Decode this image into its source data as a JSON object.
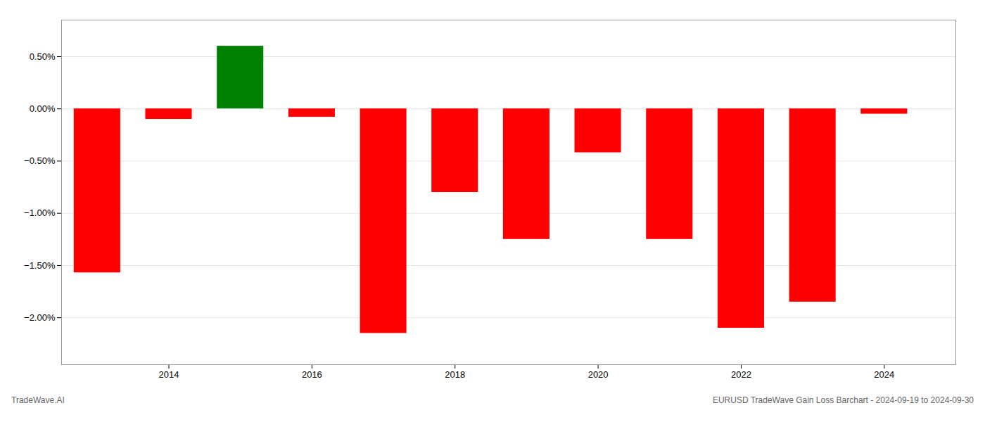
{
  "chart_data": {
    "type": "bar",
    "x": [
      2013,
      2014,
      2015,
      2016,
      2017,
      2018,
      2019,
      2020,
      2021,
      2022,
      2023,
      2024
    ],
    "values": [
      -1.57,
      -0.1,
      0.6,
      -0.08,
      -2.15,
      -0.8,
      -1.25,
      -0.42,
      -1.25,
      -2.1,
      -1.85,
      -0.05
    ],
    "colors": [
      "#FF0000",
      "#FF0000",
      "#008000",
      "#FF0000",
      "#FF0000",
      "#FF0000",
      "#FF0000",
      "#FF0000",
      "#FF0000",
      "#FF0000",
      "#FF0000",
      "#FF0000"
    ],
    "xlim": [
      2012.5,
      2025.0
    ],
    "xticks": [
      2014,
      2016,
      2018,
      2020,
      2022,
      2024
    ],
    "ylim": [
      -2.45,
      0.85
    ],
    "yticks": [
      {
        "value": -2.0,
        "label": "−2.00%"
      },
      {
        "value": -1.5,
        "label": "−1.50%"
      },
      {
        "value": -1.0,
        "label": "−1.00%"
      },
      {
        "value": -0.5,
        "label": "−0.50%"
      },
      {
        "value": 0.0,
        "label": "0.00%"
      },
      {
        "value": 0.5,
        "label": "0.50%"
      }
    ],
    "grid": true,
    "annotations": [
      "TradeWave.AI",
      "EURUSD TradeWave Gain Loss Barchart - 2024-09-19 to 2024-09-30"
    ]
  }
}
